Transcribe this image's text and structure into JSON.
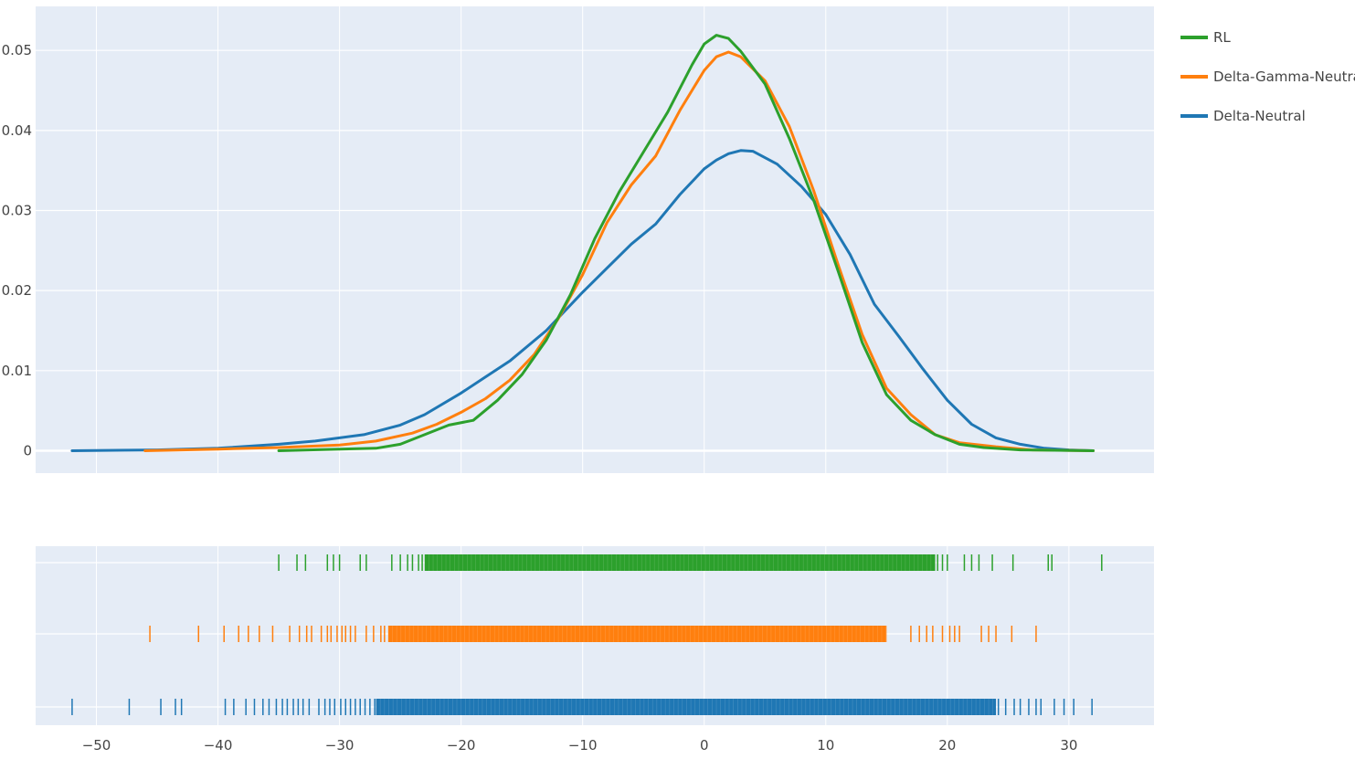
{
  "chart_data": {
    "type": "distplot",
    "kde": {
      "type": "line",
      "xlim": [
        -55,
        37
      ],
      "ylim": [
        -0.0028,
        0.0555
      ],
      "y_ticks": [
        {
          "value": 0,
          "label": "0"
        },
        {
          "value": 0.01,
          "label": "0.01"
        },
        {
          "value": 0.02,
          "label": "0.02"
        },
        {
          "value": 0.03,
          "label": "0.03"
        },
        {
          "value": 0.04,
          "label": "0.04"
        },
        {
          "value": 0.05,
          "label": "0.05"
        }
      ],
      "x_gridlines": [
        -50,
        -40,
        -30,
        -20,
        -10,
        0,
        10,
        20,
        30
      ],
      "series": [
        {
          "name": "Delta-Neutral",
          "color": "#1f77b4",
          "points": [
            [
              -52,
              0
            ],
            [
              -45,
              0.0001
            ],
            [
              -40,
              0.0003
            ],
            [
              -35,
              0.0008
            ],
            [
              -32,
              0.0012
            ],
            [
              -28,
              0.002
            ],
            [
              -25,
              0.0032
            ],
            [
              -23,
              0.0045
            ],
            [
              -20,
              0.0072
            ],
            [
              -18,
              0.0092
            ],
            [
              -16,
              0.0112
            ],
            [
              -13,
              0.015
            ],
            [
              -10,
              0.0198
            ],
            [
              -8,
              0.0228
            ],
            [
              -6,
              0.0258
            ],
            [
              -4,
              0.0283
            ],
            [
              -2,
              0.032
            ],
            [
              0,
              0.0352
            ],
            [
              1,
              0.0363
            ],
            [
              2,
              0.0371
            ],
            [
              3,
              0.0375
            ],
            [
              4,
              0.0374
            ],
            [
              6,
              0.0358
            ],
            [
              8,
              0.033
            ],
            [
              10,
              0.0295
            ],
            [
              12,
              0.0245
            ],
            [
              14,
              0.0183
            ],
            [
              16,
              0.0143
            ],
            [
              18,
              0.0102
            ],
            [
              20,
              0.0063
            ],
            [
              22,
              0.0033
            ],
            [
              24,
              0.0016
            ],
            [
              26,
              0.0008
            ],
            [
              28,
              0.0003
            ],
            [
              30,
              0.0001
            ],
            [
              32,
              0
            ]
          ]
        },
        {
          "name": "Delta-Gamma-Neutral",
          "color": "#ff7f0e",
          "points": [
            [
              -46,
              0
            ],
            [
              -40,
              0.0002
            ],
            [
              -35,
              0.0004
            ],
            [
              -30,
              0.0007
            ],
            [
              -27,
              0.0012
            ],
            [
              -24,
              0.0022
            ],
            [
              -22,
              0.0033
            ],
            [
              -20,
              0.0048
            ],
            [
              -18,
              0.0065
            ],
            [
              -16,
              0.0088
            ],
            [
              -14,
              0.012
            ],
            [
              -12,
              0.0165
            ],
            [
              -10,
              0.022
            ],
            [
              -8,
              0.0285
            ],
            [
              -6,
              0.0332
            ],
            [
              -4,
              0.0368
            ],
            [
              -2,
              0.0425
            ],
            [
              0,
              0.0475
            ],
            [
              1,
              0.0492
            ],
            [
              2,
              0.0498
            ],
            [
              3,
              0.0492
            ],
            [
              5,
              0.0462
            ],
            [
              7,
              0.0405
            ],
            [
              9,
              0.0325
            ],
            [
              11,
              0.0233
            ],
            [
              13,
              0.0145
            ],
            [
              15,
              0.0078
            ],
            [
              17,
              0.0045
            ],
            [
              19,
              0.002
            ],
            [
              21,
              0.001
            ],
            [
              24,
              0.0005
            ],
            [
              27,
              0.0001
            ],
            [
              32,
              0
            ]
          ]
        },
        {
          "name": "RL",
          "color": "#2ca02c",
          "points": [
            [
              -35,
              0
            ],
            [
              -30,
              0.0002
            ],
            [
              -27,
              0.0003
            ],
            [
              -25,
              0.0008
            ],
            [
              -23,
              0.002
            ],
            [
              -21,
              0.0032
            ],
            [
              -19,
              0.0038
            ],
            [
              -17,
              0.0063
            ],
            [
              -15,
              0.0095
            ],
            [
              -13,
              0.0138
            ],
            [
              -11,
              0.0195
            ],
            [
              -9,
              0.0265
            ],
            [
              -7,
              0.0323
            ],
            [
              -5,
              0.0373
            ],
            [
              -3,
              0.0423
            ],
            [
              -1,
              0.0482
            ],
            [
              0,
              0.0508
            ],
            [
              1,
              0.0519
            ],
            [
              2,
              0.0515
            ],
            [
              3,
              0.0499
            ],
            [
              5,
              0.0458
            ],
            [
              7,
              0.039
            ],
            [
              9,
              0.0313
            ],
            [
              11,
              0.0225
            ],
            [
              13,
              0.0135
            ],
            [
              15,
              0.007
            ],
            [
              17,
              0.0038
            ],
            [
              19,
              0.002
            ],
            [
              21,
              0.0008
            ],
            [
              23,
              0.0004
            ],
            [
              26,
              0.0001
            ],
            [
              32,
              0
            ]
          ]
        }
      ]
    },
    "rug": {
      "type": "rug",
      "xlim": [
        -55,
        37
      ],
      "x_ticks": [
        {
          "value": -50,
          "label": "−50"
        },
        {
          "value": -40,
          "label": "−40"
        },
        {
          "value": -30,
          "label": "−30"
        },
        {
          "value": -20,
          "label": "−20"
        },
        {
          "value": -10,
          "label": "−10"
        },
        {
          "value": 0,
          "label": "0"
        },
        {
          "value": 10,
          "label": "10"
        },
        {
          "value": 20,
          "label": "20"
        },
        {
          "value": 30,
          "label": "30"
        }
      ],
      "series": [
        {
          "name": "RL",
          "color": "#2ca02c",
          "outliers": [
            -35,
            -33.5,
            -32.8,
            -31,
            -30.5,
            -30,
            -28.3,
            -27.8,
            -25.7,
            -25,
            -24.4,
            -24,
            -23.5,
            -23.2,
            -22.8,
            -22.5,
            18,
            18.6,
            19.2,
            19.6,
            20,
            21.4,
            22,
            22.6,
            23.7,
            25.4,
            28.3,
            28.6,
            32.7
          ],
          "dense_range": [
            -23,
            19
          ]
        },
        {
          "name": "Delta-Gamma-Neutral",
          "color": "#ff7f0e",
          "outliers": [
            -45.6,
            -41.6,
            -39.5,
            -38.3,
            -37.5,
            -36.6,
            -35.5,
            -34.1,
            -33.3,
            -32.7,
            -32.3,
            -31.5,
            -31,
            -30.7,
            -30.2,
            -29.8,
            -29.5,
            -29.1,
            -28.7,
            -27.8,
            -27.2,
            -26.6,
            -26.3,
            17,
            17.7,
            18.3,
            18.8,
            19.6,
            20.2,
            20.6,
            21,
            22.8,
            23.4,
            24,
            25.3,
            27.3
          ],
          "dense_range": [
            -26,
            15
          ]
        },
        {
          "name": "Delta-Neutral",
          "color": "#1f77b4",
          "outliers": [
            -52,
            -47.3,
            -44.7,
            -43.5,
            -43,
            -39.4,
            -38.7,
            -37.7,
            -37,
            -36.3,
            -35.8,
            -35.2,
            -34.7,
            -34.3,
            -33.8,
            -33.4,
            -33,
            -32.5,
            -31.7,
            -31.2,
            -30.8,
            -30.4,
            -29.9,
            -29.5,
            -29.1,
            -28.7,
            -28.3,
            -27.9,
            -27.5,
            -27.1,
            24.2,
            24.8,
            25.5,
            26,
            26.7,
            27.3,
            27.7,
            28.8,
            29.6,
            30.4,
            31.9
          ],
          "dense_range": [
            -27,
            24
          ]
        }
      ]
    },
    "legend": {
      "position": "top-right",
      "items": [
        {
          "name": "RL",
          "color": "#2ca02c"
        },
        {
          "name": "Delta-Gamma-Neutral",
          "color": "#ff7f0e"
        },
        {
          "name": "Delta-Neutral",
          "color": "#1f77b4"
        }
      ]
    },
    "colors": {
      "plot_background": "#e5ecf6",
      "gridline": "#ffffff",
      "text": "#444444"
    }
  }
}
